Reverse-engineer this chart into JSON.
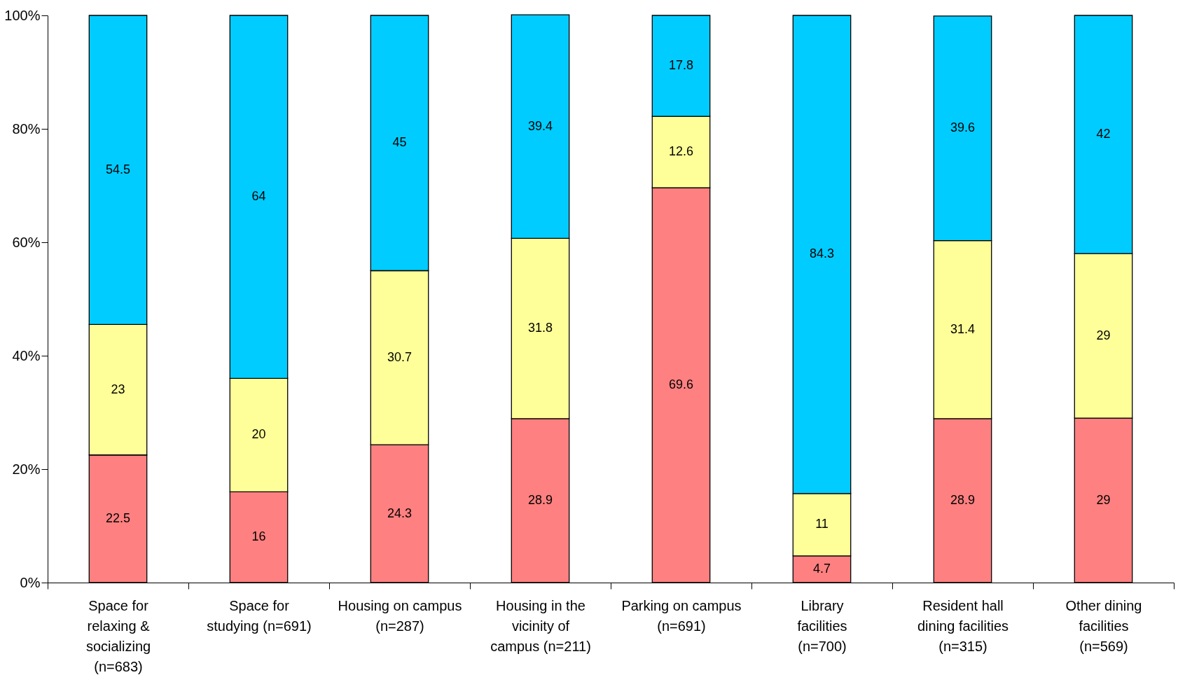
{
  "chart_data": {
    "type": "bar",
    "stacked": true,
    "data_labels": true,
    "grid": false,
    "legend": false,
    "categories": [
      "Space for relaxing & socializing (n=683)",
      "Space for studying (n=691)",
      "Housing on campus (n=287)",
      "Housing in the vicinity of campus (n=211)",
      "Parking on campus (n=691)",
      "Library facilities (n=700)",
      "Resident hall dining facilities (n=315)",
      "Other dining facilities (n=569)"
    ],
    "series": [
      {
        "color": "#ff8080",
        "values": [
          22.5,
          16,
          24.3,
          28.9,
          69.6,
          4.7,
          28.9,
          29
        ]
      },
      {
        "color": "#ffff99",
        "values": [
          23,
          20,
          30.7,
          31.8,
          12.6,
          11,
          31.4,
          29
        ]
      },
      {
        "color": "#00ccff",
        "values": [
          54.5,
          64,
          45,
          39.4,
          17.8,
          84.3,
          39.6,
          42
        ]
      }
    ],
    "ylim": [
      0,
      100
    ],
    "yticks": [
      {
        "value": 0,
        "label": "0%"
      },
      {
        "value": 20,
        "label": "20%"
      },
      {
        "value": 40,
        "label": "40%"
      },
      {
        "value": 60,
        "label": "60%"
      },
      {
        "value": 80,
        "label": "80%"
      },
      {
        "value": 100,
        "label": "100%"
      }
    ]
  }
}
